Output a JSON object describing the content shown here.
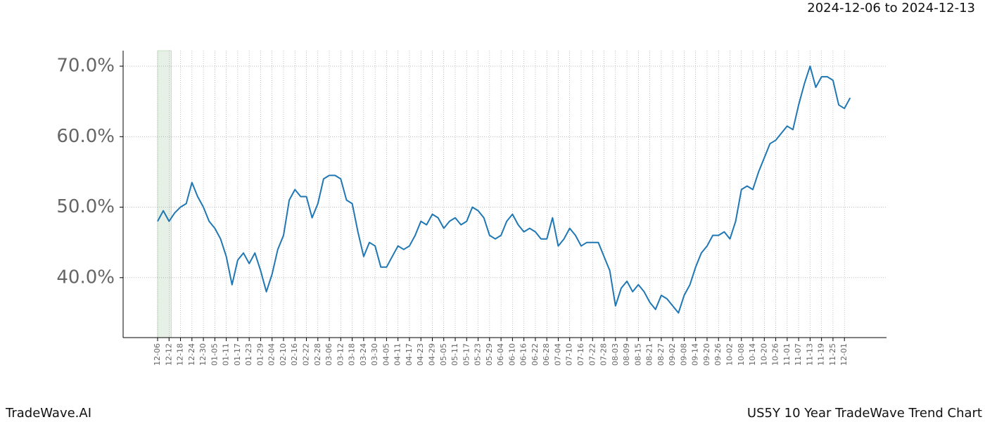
{
  "header": {
    "date_range": "2024-12-06 to 2024-12-13"
  },
  "footer": {
    "brand": "TradeWave.AI",
    "chart_name": "US5Y 10 Year TradeWave Trend Chart"
  },
  "chart_data": {
    "type": "line",
    "color": "#1f77b4",
    "highlight_color": "#e6f0e6",
    "grid": true,
    "categories": [
      "12-06",
      null,
      "12-12",
      null,
      "12-18",
      null,
      "12-24",
      null,
      "12-30",
      null,
      "01-05",
      null,
      "01-11",
      null,
      "01-17",
      null,
      "01-23",
      null,
      "01-29",
      null,
      "02-04",
      null,
      "02-10",
      null,
      "02-16",
      null,
      "02-22",
      null,
      "02-28",
      null,
      "03-06",
      null,
      "03-12",
      null,
      "03-18",
      null,
      "03-24",
      null,
      "03-30",
      null,
      "04-05",
      null,
      "04-11",
      null,
      "04-17",
      null,
      "04-23",
      null,
      "04-29",
      null,
      "05-05",
      null,
      "05-11",
      null,
      "05-17",
      null,
      "05-23",
      null,
      "05-29",
      null,
      "06-04",
      null,
      "06-10",
      null,
      "06-16",
      null,
      "06-22",
      null,
      "06-28",
      null,
      "07-04",
      null,
      "07-10",
      null,
      "07-16",
      null,
      "07-22",
      null,
      "07-28",
      null,
      "08-03",
      null,
      "08-09",
      null,
      "08-15",
      null,
      "08-21",
      null,
      "08-27",
      null,
      "09-02",
      null,
      "09-08",
      null,
      "09-14",
      null,
      "09-20",
      null,
      "09-26",
      null,
      "10-02",
      null,
      "10-08",
      null,
      "10-14",
      null,
      "10-20",
      null,
      "10-26",
      null,
      "11-01",
      null,
      "11-07",
      null,
      "11-13",
      null,
      "11-19",
      null,
      "11-25",
      null,
      "12-01",
      null
    ],
    "values": [
      48.0,
      49.5,
      48.0,
      49.2,
      50.0,
      50.5,
      53.5,
      51.5,
      50.0,
      48.0,
      47.0,
      45.5,
      43.0,
      39.0,
      42.5,
      43.5,
      42.0,
      43.5,
      41.0,
      38.0,
      40.5,
      44.0,
      46.0,
      51.0,
      52.5,
      51.5,
      51.5,
      48.5,
      50.5,
      54.0,
      54.5,
      54.5,
      54.0,
      51.0,
      50.5,
      46.5,
      43.0,
      45.0,
      44.5,
      41.5,
      41.5,
      43.0,
      44.5,
      44.0,
      44.5,
      46.0,
      48.0,
      47.5,
      49.0,
      48.5,
      47.0,
      48.0,
      48.5,
      47.5,
      48.0,
      50.0,
      49.5,
      48.5,
      46.0,
      45.5,
      46.0,
      48.0,
      49.0,
      47.5,
      46.5,
      47.0,
      46.5,
      45.5,
      45.5,
      48.5,
      44.5,
      45.5,
      47.0,
      46.0,
      44.5,
      45.0,
      45.0,
      45.0,
      43.0,
      41.0,
      36.0,
      38.5,
      39.5,
      38.0,
      39.0,
      38.0,
      36.5,
      35.5,
      37.5,
      37.0,
      36.0,
      35.0,
      37.5,
      39.0,
      41.5,
      43.5,
      44.5,
      46.0,
      46.0,
      46.5,
      45.5,
      48.0,
      52.5,
      53.0,
      52.5,
      55.0,
      57.0,
      59.0,
      59.5,
      60.5,
      61.5,
      61.0,
      64.5,
      67.5,
      70.0,
      67.0,
      68.5,
      68.5,
      68.0,
      64.5,
      64.0,
      65.5
    ],
    "ylim": [
      31.5,
      72.2
    ],
    "yticks": [
      {
        "value": 40,
        "label": "40.0%"
      },
      {
        "value": 50,
        "label": "50.0%"
      },
      {
        "value": 60,
        "label": "60.0%"
      },
      {
        "value": 70,
        "label": "70.0%"
      }
    ]
  }
}
